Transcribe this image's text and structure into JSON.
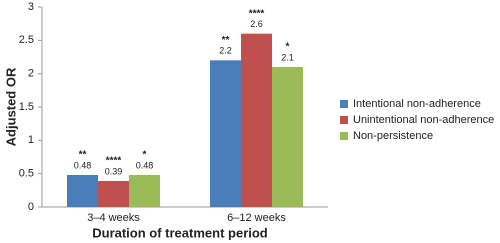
{
  "chart_data": {
    "type": "bar",
    "x_label": "Duration of treatment period",
    "y_label": "Adjusted OR",
    "categories": [
      "3–4 weeks",
      "6–12 weeks"
    ],
    "series": [
      {
        "name": "Intentional non-adherence",
        "color": "#4a7ebb",
        "values": [
          0.48,
          2.2
        ],
        "annotations": [
          "**",
          "**"
        ]
      },
      {
        "name": "Unintentional non-adherence",
        "color": "#c0504d",
        "values": [
          0.39,
          2.6
        ],
        "annotations": [
          "****",
          "****"
        ]
      },
      {
        "name": "Non-persistence",
        "color": "#9bbb59",
        "values": [
          0.48,
          2.1
        ],
        "annotations": [
          "*",
          "*"
        ]
      }
    ],
    "ylim": [
      0,
      3
    ],
    "yticks": [
      0,
      0.5,
      1,
      1.5,
      2,
      2.5,
      3
    ],
    "grid": false,
    "legend": "right"
  }
}
